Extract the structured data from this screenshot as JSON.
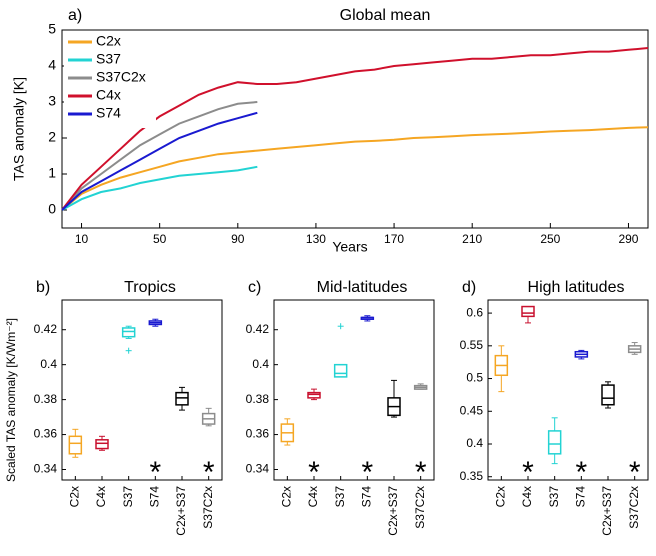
{
  "chart_data": [
    {
      "type": "line",
      "panel_label": "a)",
      "title": "Global mean",
      "xlabel": "Years",
      "ylabel": "TAS anomaly [K]",
      "x": [
        0,
        10,
        20,
        30,
        40,
        50,
        60,
        70,
        80,
        90,
        100,
        110,
        120,
        130,
        140,
        150,
        160,
        170,
        180,
        190,
        200,
        210,
        220,
        230,
        240,
        250,
        260,
        270,
        280,
        290,
        300
      ],
      "series": [
        {
          "name": "C2x",
          "color": "#f5a623",
          "values": [
            0,
            0.45,
            0.7,
            0.9,
            1.05,
            1.2,
            1.35,
            1.45,
            1.55,
            1.6,
            1.65,
            1.7,
            1.75,
            1.8,
            1.85,
            1.9,
            1.92,
            1.95,
            2.0,
            2.02,
            2.05,
            2.08,
            2.1,
            2.12,
            2.15,
            2.18,
            2.2,
            2.22,
            2.25,
            2.28,
            2.3
          ]
        },
        {
          "name": "S37",
          "color": "#22d3d3",
          "values": [
            0,
            0.3,
            0.5,
            0.6,
            0.75,
            0.85,
            0.95,
            1.0,
            1.05,
            1.1,
            1.2,
            null,
            null,
            null,
            null,
            null,
            null,
            null,
            null,
            null,
            null,
            null,
            null,
            null,
            null,
            null,
            null,
            null,
            null,
            null,
            null
          ]
        },
        {
          "name": "S37C2x",
          "color": "#8c8c8c",
          "values": [
            0,
            0.6,
            1.0,
            1.4,
            1.8,
            2.1,
            2.4,
            2.6,
            2.8,
            2.95,
            3.0,
            null,
            null,
            null,
            null,
            null,
            null,
            null,
            null,
            null,
            null,
            null,
            null,
            null,
            null,
            null,
            null,
            null,
            null,
            null,
            null
          ]
        },
        {
          "name": "C4x",
          "color": "#d0102c",
          "values": [
            0,
            0.7,
            1.2,
            1.7,
            2.2,
            2.6,
            2.9,
            3.2,
            3.4,
            3.55,
            3.5,
            3.5,
            3.55,
            3.65,
            3.75,
            3.85,
            3.9,
            4.0,
            4.05,
            4.1,
            4.15,
            4.2,
            4.2,
            4.25,
            4.3,
            4.3,
            4.35,
            4.4,
            4.4,
            4.45,
            4.5
          ]
        },
        {
          "name": "S74",
          "color": "#1a1ad0",
          "values": [
            0,
            0.5,
            0.8,
            1.1,
            1.4,
            1.7,
            2.0,
            2.2,
            2.4,
            2.55,
            2.7,
            null,
            null,
            null,
            null,
            null,
            null,
            null,
            null,
            null,
            null,
            null,
            null,
            null,
            null,
            null,
            null,
            null,
            null,
            null,
            null
          ]
        }
      ],
      "xlim": [
        0,
        300
      ],
      "xticks": [
        10,
        50,
        90,
        130,
        170,
        210,
        250,
        290
      ],
      "ylim": [
        -0.5,
        5
      ],
      "yticks": [
        0,
        1,
        2,
        3,
        4,
        5
      ],
      "legend": "upper left"
    },
    {
      "type": "box",
      "panel_label": "b)",
      "title": "Tropics",
      "ylabel": "Scaled TAS anomaly [K/Wm⁻²]",
      "categories": [
        "C2x",
        "C4x",
        "S37",
        "S74",
        "C2x+S37",
        "S37C2x"
      ],
      "colors": [
        "#f5a623",
        "#c8102e",
        "#22d3d3",
        "#1a1ad0",
        "#000000",
        "#8c8c8c"
      ],
      "boxes": [
        {
          "min": 0.347,
          "q1": 0.349,
          "median": 0.355,
          "q3": 0.359,
          "max": 0.363,
          "outliers": []
        },
        {
          "min": 0.351,
          "q1": 0.352,
          "median": 0.355,
          "q3": 0.357,
          "max": 0.359,
          "outliers": []
        },
        {
          "min": 0.415,
          "q1": 0.416,
          "median": 0.419,
          "q3": 0.421,
          "max": 0.422,
          "outliers": [
            0.408
          ]
        },
        {
          "min": 0.422,
          "q1": 0.423,
          "median": 0.424,
          "q3": 0.425,
          "max": 0.426,
          "outliers": []
        },
        {
          "min": 0.374,
          "q1": 0.377,
          "median": 0.381,
          "q3": 0.384,
          "max": 0.387,
          "outliers": []
        },
        {
          "min": 0.365,
          "q1": 0.366,
          "median": 0.369,
          "q3": 0.372,
          "max": 0.375,
          "outliers": []
        }
      ],
      "significant": [
        false,
        false,
        false,
        true,
        false,
        true
      ],
      "significance_label": "*",
      "ylim": [
        0.334,
        0.437
      ],
      "yticks": [
        0.34,
        0.36,
        0.38,
        0.4,
        0.42
      ]
    },
    {
      "type": "box",
      "panel_label": "c)",
      "title": "Mid-latitudes",
      "categories": [
        "C2x",
        "C4x",
        "S37",
        "S74",
        "C2x+S37",
        "S37C2x"
      ],
      "colors": [
        "#f5a623",
        "#c8102e",
        "#22d3d3",
        "#1a1ad0",
        "#000000",
        "#8c8c8c"
      ],
      "boxes": [
        {
          "min": 0.354,
          "q1": 0.356,
          "median": 0.361,
          "q3": 0.366,
          "max": 0.369,
          "outliers": []
        },
        {
          "min": 0.38,
          "q1": 0.381,
          "median": 0.383,
          "q3": 0.384,
          "max": 0.386,
          "outliers": []
        },
        {
          "min": 0.393,
          "q1": 0.393,
          "median": 0.395,
          "q3": 0.4,
          "max": 0.4,
          "outliers": [
            0.422
          ]
        },
        {
          "min": 0.425,
          "q1": 0.426,
          "median": 0.427,
          "q3": 0.427,
          "max": 0.428,
          "outliers": []
        },
        {
          "min": 0.37,
          "q1": 0.371,
          "median": 0.376,
          "q3": 0.381,
          "max": 0.391,
          "outliers": []
        },
        {
          "min": 0.386,
          "q1": 0.386,
          "median": 0.387,
          "q3": 0.388,
          "max": 0.389,
          "outliers": []
        }
      ],
      "significant": [
        false,
        true,
        false,
        true,
        false,
        true
      ],
      "significance_label": "*",
      "ylim": [
        0.334,
        0.437
      ],
      "yticks": [
        0.34,
        0.36,
        0.38,
        0.4,
        0.42
      ]
    },
    {
      "type": "box",
      "panel_label": "d)",
      "title": "High latitudes",
      "categories": [
        "C2x",
        "C4x",
        "S37",
        "S74",
        "C2x+S37",
        "S37C2x"
      ],
      "colors": [
        "#f5a623",
        "#c8102e",
        "#22d3d3",
        "#1a1ad0",
        "#000000",
        "#8c8c8c"
      ],
      "boxes": [
        {
          "min": 0.48,
          "q1": 0.505,
          "median": 0.52,
          "q3": 0.535,
          "max": 0.55,
          "outliers": []
        },
        {
          "min": 0.585,
          "q1": 0.595,
          "median": 0.6,
          "q3": 0.61,
          "max": 0.61,
          "outliers": []
        },
        {
          "min": 0.37,
          "q1": 0.385,
          "median": 0.4,
          "q3": 0.42,
          "max": 0.44,
          "outliers": []
        },
        {
          "min": 0.53,
          "q1": 0.533,
          "median": 0.537,
          "q3": 0.541,
          "max": 0.543,
          "outliers": []
        },
        {
          "min": 0.455,
          "q1": 0.46,
          "median": 0.47,
          "q3": 0.49,
          "max": 0.495,
          "outliers": []
        },
        {
          "min": 0.537,
          "q1": 0.54,
          "median": 0.545,
          "q3": 0.55,
          "max": 0.555,
          "outliers": []
        }
      ],
      "significant": [
        false,
        true,
        false,
        true,
        false,
        true
      ],
      "significance_label": "*",
      "ylim": [
        0.345,
        0.62
      ],
      "yticks": [
        0.35,
        0.4,
        0.45,
        0.5,
        0.55,
        0.6
      ]
    }
  ]
}
